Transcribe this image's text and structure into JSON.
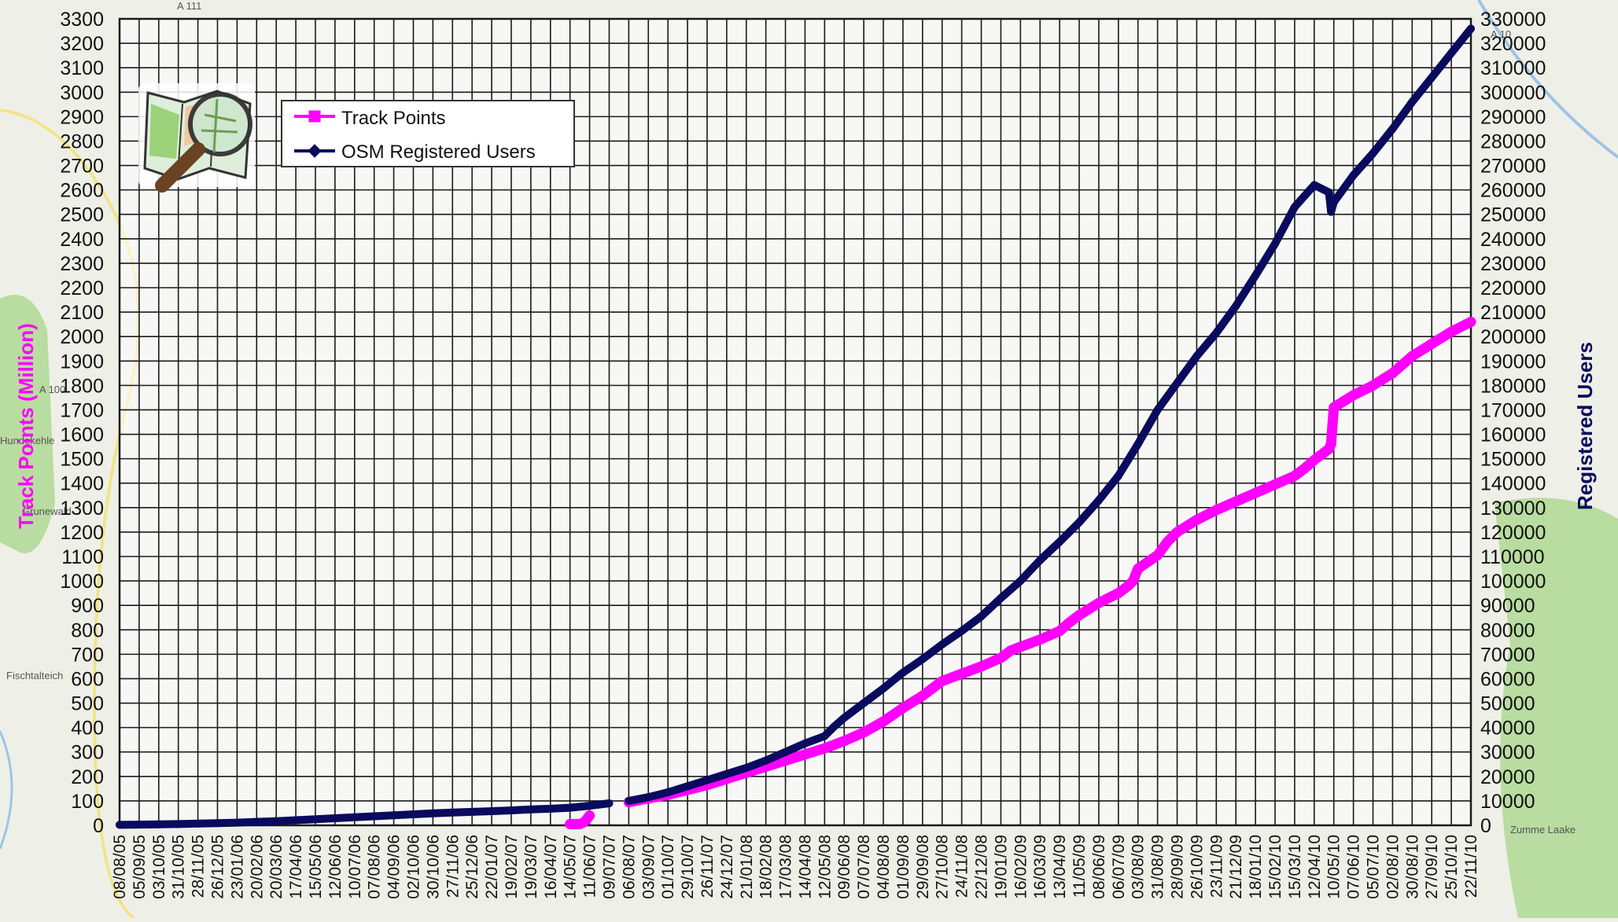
{
  "colors": {
    "track_points": "#ff00ff",
    "registered_users": "#0a0a5e",
    "grid": "#1a1a1a",
    "map_bg": "#eef0e8",
    "map_green": "#b9dca0",
    "map_road_yellow": "#f3e38a",
    "map_water": "#9fc3e6"
  },
  "legend": {
    "position": "top-left",
    "items": [
      {
        "label": "Track Points",
        "marker": "square",
        "series": "track_points"
      },
      {
        "label": "OSM Registered Users",
        "marker": "diamond",
        "series": "registered_users"
      }
    ]
  },
  "logo": {
    "icon": "openstreetmap-magnifier-logo"
  },
  "background_map_labels": [
    "A 111",
    "A 100",
    "Fischtalteich",
    "Grunewald",
    "Hundekehle",
    "Zumme Laake",
    "A 10"
  ],
  "chart_data": {
    "type": "line",
    "grid": true,
    "xlabel": "",
    "x_tick_labels": [
      "08/08/05",
      "05/09/05",
      "03/10/05",
      "31/10/05",
      "28/11/05",
      "26/12/05",
      "23/01/06",
      "20/02/06",
      "20/03/06",
      "17/04/06",
      "15/05/06",
      "12/06/06",
      "10/07/06",
      "07/08/06",
      "04/09/06",
      "02/10/06",
      "30/10/06",
      "27/11/06",
      "25/12/06",
      "22/01/07",
      "19/02/07",
      "19/03/07",
      "16/04/07",
      "14/05/07",
      "11/06/07",
      "09/07/07",
      "06/08/07",
      "03/09/07",
      "01/10/07",
      "29/10/07",
      "26/11/07",
      "24/12/07",
      "21/01/08",
      "18/02/08",
      "17/03/08",
      "14/04/08",
      "12/05/08",
      "09/06/08",
      "07/07/08",
      "04/08/08",
      "01/09/08",
      "29/09/08",
      "27/10/08",
      "24/11/08",
      "22/12/08",
      "19/01/09",
      "16/02/09",
      "16/03/09",
      "13/04/09",
      "11/05/09",
      "08/06/09",
      "06/07/09",
      "03/08/09",
      "31/08/09",
      "28/09/09",
      "26/10/09",
      "23/11/09",
      "21/12/09",
      "18/01/10",
      "15/02/10",
      "15/03/10",
      "12/04/10",
      "10/05/10",
      "07/06/10",
      "05/07/10",
      "02/08/10",
      "30/08/10",
      "27/09/10",
      "25/10/10",
      "22/11/10"
    ],
    "y_left": {
      "label": "Track Points (Million)",
      "min": 0,
      "max": 3300,
      "step": 100,
      "tick_labels": [
        "0",
        "100",
        "200",
        "300",
        "400",
        "500",
        "600",
        "700",
        "800",
        "900",
        "1000",
        "1100",
        "1200",
        "1300",
        "1400",
        "1500",
        "1600",
        "1700",
        "1800",
        "1900",
        "2000",
        "2100",
        "2200",
        "2300",
        "2400",
        "2500",
        "2600",
        "2700",
        "2800",
        "2900",
        "3000",
        "3100",
        "3200",
        "3300"
      ]
    },
    "y_right": {
      "label": "Registered Users",
      "min": 0,
      "max": 330000,
      "step": 10000,
      "tick_labels": [
        "0",
        "10000",
        "20000",
        "30000",
        "40000",
        "50000",
        "60000",
        "70000",
        "80000",
        "90000",
        "100000",
        "110000",
        "120000",
        "130000",
        "140000",
        "150000",
        "160000",
        "170000",
        "180000",
        "190000",
        "200000",
        "210000",
        "220000",
        "230000",
        "240000",
        "250000",
        "260000",
        "270000",
        "280000",
        "290000",
        "300000",
        "310000",
        "320000",
        "330000"
      ]
    },
    "series": [
      {
        "name": "Track Points",
        "axis": "left",
        "segments": [
          {
            "x": [
              "14/05/07",
              "16/05/07",
              "18/05/07",
              "21/05/07",
              "25/05/07",
              "28/05/07",
              "01/06/07",
              "05/06/07",
              "11/06/07"
            ],
            "y": [
              5,
              5,
              5,
              5,
              5,
              5,
              10,
              18,
              40
            ]
          },
          {
            "x": [
              "06/08/07",
              "03/09/07",
              "01/10/07",
              "29/10/07",
              "26/11/07",
              "24/12/07",
              "21/01/08",
              "18/02/08",
              "17/03/08",
              "14/04/08",
              "12/05/08",
              "09/06/08",
              "07/07/08",
              "04/08/08",
              "01/09/08",
              "29/09/08",
              "13/10/08",
              "27/10/08",
              "24/11/08",
              "22/12/08",
              "19/01/09",
              "02/02/09",
              "16/02/09",
              "16/03/09",
              "13/04/09",
              "27/04/09",
              "11/05/09",
              "08/06/09",
              "06/07/09",
              "20/07/09",
              "27/07/09",
              "03/08/09",
              "31/08/09",
              "14/09/09",
              "28/09/09",
              "26/10/09",
              "23/11/09",
              "21/12/09",
              "18/01/10",
              "15/02/10",
              "15/03/10",
              "29/03/10",
              "12/04/10",
              "26/04/10",
              "03/05/10",
              "06/05/10",
              "10/05/10",
              "07/06/10",
              "05/07/10",
              "02/08/10",
              "30/08/10",
              "27/09/10",
              "25/10/10",
              "22/11/10"
            ],
            "y": [
              95,
              110,
              125,
              145,
              165,
              190,
              215,
              240,
              265,
              290,
              315,
              345,
              380,
              425,
              480,
              530,
              560,
              590,
              620,
              650,
              685,
              715,
              730,
              760,
              795,
              830,
              860,
              910,
              950,
              980,
              1000,
              1050,
              1105,
              1160,
              1200,
              1250,
              1290,
              1325,
              1360,
              1395,
              1430,
              1460,
              1495,
              1525,
              1540,
              1560,
              1710,
              1760,
              1800,
              1850,
              1920,
              1970,
              2020,
              2060
            ]
          }
        ]
      },
      {
        "name": "OSM Registered Users",
        "axis": "right",
        "segments": [
          {
            "x": [
              "08/08/05",
              "05/09/05",
              "03/10/05",
              "31/10/05",
              "28/11/05",
              "26/12/05",
              "23/01/06",
              "20/02/06",
              "20/03/06",
              "17/04/06",
              "15/05/06",
              "12/06/06",
              "10/07/06",
              "07/08/06",
              "04/09/06",
              "02/10/06",
              "30/10/06",
              "27/11/06",
              "25/12/06",
              "22/01/07",
              "19/02/07",
              "19/03/07",
              "16/04/07",
              "14/05/07",
              "11/06/07",
              "09/07/07"
            ],
            "y": [
              200,
              300,
              400,
              500,
              700,
              900,
              1100,
              1400,
              1700,
              2100,
              2500,
              2900,
              3300,
              3700,
              4100,
              4500,
              4900,
              5200,
              5500,
              5800,
              6100,
              6500,
              6800,
              7200,
              8000,
              9000
            ]
          },
          {
            "x": [
              "06/08/07",
              "03/09/07",
              "01/10/07",
              "29/10/07",
              "26/11/07",
              "24/12/07",
              "21/01/08",
              "18/02/08",
              "17/03/08",
              "14/04/08",
              "12/05/08",
              "26/05/08",
              "09/06/08",
              "07/07/08",
              "04/08/08",
              "01/09/08",
              "29/09/08",
              "27/10/08",
              "24/11/08",
              "22/12/08",
              "19/01/09",
              "16/02/09",
              "16/03/09",
              "13/04/09",
              "11/05/09",
              "08/06/09",
              "06/07/09",
              "03/08/09",
              "31/08/09",
              "28/09/09",
              "26/10/09",
              "23/11/09",
              "21/12/09",
              "18/01/10",
              "15/02/10",
              "15/03/10",
              "12/04/10",
              "03/05/10",
              "06/05/10",
              "10/05/10",
              "07/06/10",
              "05/07/10",
              "02/08/10",
              "30/08/10",
              "27/09/10",
              "25/10/10",
              "22/11/10"
            ],
            "y": [
              10000,
              11500,
              13500,
              16000,
              18500,
              21000,
              23500,
              26500,
              30000,
              33500,
              36500,
              40500,
              44000,
              50000,
              56000,
              62500,
              68000,
              74000,
              79500,
              85500,
              93000,
              100000,
              108500,
              116000,
              124000,
              133000,
              143000,
              156000,
              170000,
              181000,
              192000,
              201500,
              212500,
              225000,
              238000,
              253000,
              262000,
              259000,
              251000,
              255000,
              266000,
              275000,
              285000,
              296000,
              306000,
              316000,
              326000
            ]
          }
        ]
      }
    ]
  }
}
